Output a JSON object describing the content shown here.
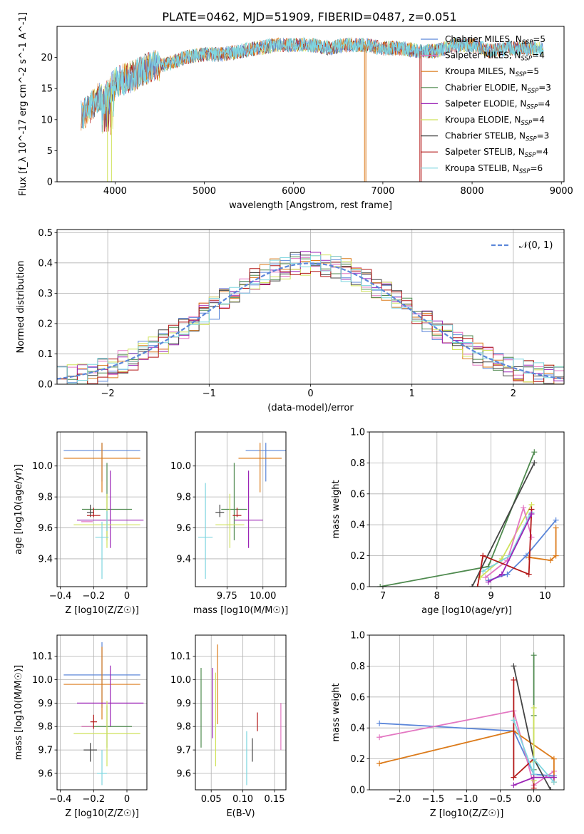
{
  "figure": {
    "title": "PLATE=0462, MJD=51909, FIBERID=0487, z=0.051"
  },
  "colors": {
    "chabrier_miles": "#5b86d9",
    "salpeter_miles": "#e377c2",
    "kroupa_miles": "#dc7b1b",
    "chabrier_elodie": "#4f8a4f",
    "salpeter_elodie": "#9b24b6",
    "kroupa_elodie": "#cfe25a",
    "chabrier_stelib": "#444444",
    "salpeter_stelib": "#b31717",
    "kroupa_stelib": "#7fd6e0"
  },
  "legend": [
    {
      "key": "chabrier_miles",
      "base": "Chabrier MILES, N",
      "n": "5"
    },
    {
      "key": "salpeter_miles",
      "base": "Salpeter MILES, N",
      "n": "4"
    },
    {
      "key": "kroupa_miles",
      "base": "Kroupa MILES, N",
      "n": "5"
    },
    {
      "key": "chabrier_elodie",
      "base": "Chabrier ELODIE, N",
      "n": "3"
    },
    {
      "key": "salpeter_elodie",
      "base": "Salpeter ELODIE, N",
      "n": "4"
    },
    {
      "key": "kroupa_elodie",
      "base": "Kroupa ELODIE, N",
      "n": "4"
    },
    {
      "key": "chabrier_stelib",
      "base": "Chabrier STELIB, N",
      "n": "3"
    },
    {
      "key": "salpeter_stelib",
      "base": "Salpeter STELIB, N",
      "n": "4"
    },
    {
      "key": "kroupa_stelib",
      "base": "Kroupa STELIB, N",
      "n": "6"
    }
  ],
  "legend_sub": "SSP",
  "normal_legend": "𝒩(0, 1)",
  "chart_data": [
    {
      "id": "spectrum",
      "type": "line",
      "xlabel": "wavelength [Angstrom, rest frame]",
      "ylabel": "Flux [f_λ 10^-17 erg cm^-2 s^-1 A^-1]",
      "xlim": [
        3350,
        9030
      ],
      "ylim": [
        0,
        25
      ],
      "xticks": [
        4000,
        5000,
        6000,
        7000,
        8000,
        9000
      ],
      "yticks": [
        0,
        5,
        10,
        15,
        20
      ],
      "grid": false,
      "spectrum_nodes": [
        [
          3620,
          10.5
        ],
        [
          3700,
          11.5
        ],
        [
          3800,
          13.5
        ],
        [
          3900,
          13.5
        ],
        [
          4000,
          16
        ],
        [
          4200,
          17
        ],
        [
          4400,
          18.5
        ],
        [
          4600,
          19
        ],
        [
          4800,
          20
        ],
        [
          5000,
          20.5
        ],
        [
          5200,
          20.5
        ],
        [
          5400,
          21
        ],
        [
          5600,
          21.5
        ],
        [
          5800,
          22
        ],
        [
          6000,
          22
        ],
        [
          6200,
          22
        ],
        [
          6400,
          21.5
        ],
        [
          6600,
          22
        ],
        [
          6800,
          22
        ],
        [
          7000,
          21.5
        ],
        [
          7200,
          21.5
        ],
        [
          7420,
          21
        ],
        [
          7600,
          21
        ],
        [
          7800,
          22
        ],
        [
          8000,
          22
        ],
        [
          8200,
          21
        ],
        [
          8400,
          21.5
        ],
        [
          8600,
          21.5
        ],
        [
          8800,
          21.5
        ]
      ],
      "drops": [
        [
          3915,
          3960
        ],
        [
          6795,
          6810
        ],
        [
          7415,
          7430
        ]
      ]
    },
    {
      "id": "residuals",
      "type": "bar",
      "xlabel": "(data-model)/error",
      "ylabel": "Normed distribution",
      "xlim": [
        -2.5,
        2.5
      ],
      "ylim": [
        0,
        0.51
      ],
      "xticks": [
        -2,
        -1,
        0,
        1,
        2
      ],
      "yticks": [
        0.0,
        0.1,
        0.2,
        0.3,
        0.4,
        0.5
      ],
      "grid": true,
      "bin_width": 0.1,
      "normal_mean": 0,
      "normal_sigma": 1
    },
    {
      "id": "age_vs_Z",
      "type": "scatter",
      "xlabel": "Z [log10(Z/Z☉)]",
      "ylabel": "age  [log10(age/yr)]",
      "xlim": [
        -0.42,
        0.12
      ],
      "ylim": [
        9.22,
        10.22
      ],
      "xticks": [
        -0.4,
        -0.2,
        0.0
      ],
      "yticks": [
        9.4,
        9.6,
        9.8,
        10.0
      ],
      "grid": true,
      "points": [
        {
          "key": "chabrier_miles",
          "x": -0.15,
          "y": 10.1,
          "xerr": 0.23,
          "yerr": [
            0.2,
            0.05
          ]
        },
        {
          "key": "kroupa_miles",
          "x": -0.15,
          "y": 10.05,
          "xerr": 0.23,
          "yerr": [
            0.22,
            0.1
          ]
        },
        {
          "key": "salpeter_miles",
          "x": -0.24,
          "y": 9.64,
          "xerr": 0.0,
          "yerr": [
            0.0,
            0.0
          ]
        },
        {
          "key": "chabrier_elodie",
          "x": -0.12,
          "y": 9.72,
          "xerr": 0.15,
          "yerr": [
            0.2,
            0.3
          ]
        },
        {
          "key": "salpeter_elodie",
          "x": -0.1,
          "y": 9.65,
          "xerr": 0.2,
          "yerr": [
            0.18,
            0.32
          ]
        },
        {
          "key": "kroupa_elodie",
          "x": -0.12,
          "y": 9.62,
          "xerr": 0.2,
          "yerr": [
            0.15,
            0.2
          ]
        },
        {
          "key": "chabrier_stelib",
          "x": -0.22,
          "y": 9.7,
          "xerr": 0.02,
          "yerr": [
            0.03,
            0.05
          ]
        },
        {
          "key": "salpeter_stelib",
          "x": -0.2,
          "y": 9.68,
          "xerr": 0.04,
          "yerr": [
            0.01,
            0.05
          ]
        },
        {
          "key": "kroupa_stelib",
          "x": -0.15,
          "y": 9.54,
          "xerr": 0.04,
          "yerr": [
            0.27,
            0.1
          ]
        },
        {
          "key": "kroupa_stelib",
          "x": -0.12,
          "y": 9.63,
          "xerr": 0.0,
          "yerr": [
            0.05,
            0.08
          ]
        }
      ]
    },
    {
      "id": "age_vs_mass",
      "type": "scatter",
      "xlabel": "mass [log10(M/M☉)]",
      "ylabel": "",
      "xlim": [
        9.53,
        10.16
      ],
      "ylim": [
        9.22,
        10.22
      ],
      "xticks": [
        9.75,
        10.0
      ],
      "xticklabels": [
        "9.75",
        "10.00"
      ],
      "yticks": [
        9.4,
        9.6,
        9.8,
        10.0
      ],
      "grid": true,
      "points": [
        {
          "key": "chabrier_miles",
          "x": 10.02,
          "y": 10.1,
          "xerr": 0.14,
          "yerr": [
            0.2,
            0.05
          ]
        },
        {
          "key": "kroupa_miles",
          "x": 9.98,
          "y": 10.05,
          "xerr": 0.15,
          "yerr": [
            0.22,
            0.1
          ]
        },
        {
          "key": "chabrier_elodie",
          "x": 9.8,
          "y": 9.72,
          "xerr": 0.09,
          "yerr": [
            0.2,
            0.3
          ]
        },
        {
          "key": "salpeter_elodie",
          "x": 9.9,
          "y": 9.65,
          "xerr": 0.1,
          "yerr": [
            0.18,
            0.32
          ]
        },
        {
          "key": "kroupa_elodie",
          "x": 9.77,
          "y": 9.62,
          "xerr": 0.1,
          "yerr": [
            0.15,
            0.2
          ]
        },
        {
          "key": "chabrier_stelib",
          "x": 9.7,
          "y": 9.7,
          "xerr": 0.03,
          "yerr": [
            0.03,
            0.05
          ]
        },
        {
          "key": "salpeter_stelib",
          "x": 9.82,
          "y": 9.68,
          "xerr": 0.03,
          "yerr": [
            0.01,
            0.05
          ]
        },
        {
          "key": "kroupa_stelib",
          "x": 9.6,
          "y": 9.54,
          "xerr": 0.05,
          "yerr": [
            0.27,
            0.35
          ]
        }
      ]
    },
    {
      "id": "mw_vs_age",
      "type": "line",
      "xlabel": "age  [log10(age/yr)]",
      "ylabel": "mass weight",
      "xlim": [
        6.75,
        10.35
      ],
      "ylim": [
        0,
        1.0
      ],
      "xticks": [
        7,
        8,
        9,
        10
      ],
      "yticks": [
        0.0,
        0.2,
        0.4,
        0.6,
        0.8,
        1.0
      ],
      "grid": true,
      "series": [
        {
          "key": "chabrier_elodie",
          "x": [
            6.95,
            8.95,
            9.8
          ],
          "y": [
            0.0,
            0.13,
            0.87
          ]
        },
        {
          "key": "chabrier_stelib",
          "x": [
            8.65,
            9.8
          ],
          "y": [
            0.0,
            0.8
          ]
        },
        {
          "key": "kroupa_elodie",
          "x": [
            8.8,
            9.2,
            9.75
          ],
          "y": [
            0.06,
            0.18,
            0.53
          ]
        },
        {
          "key": "salpeter_miles",
          "x": [
            8.9,
            9.3,
            9.6,
            9.75
          ],
          "y": [
            0.06,
            0.17,
            0.51,
            0.32
          ]
        },
        {
          "key": "kroupa_stelib",
          "x": [
            8.85,
            9.35,
            9.7,
            9.75
          ],
          "y": [
            0.1,
            0.2,
            0.45,
            0.48
          ]
        },
        {
          "key": "chabrier_miles",
          "x": [
            8.95,
            9.3,
            9.65,
            10.2
          ],
          "y": [
            0.04,
            0.08,
            0.2,
            0.43
          ]
        },
        {
          "key": "kroupa_miles",
          "x": [
            9.7,
            10.1,
            10.2,
            10.2
          ],
          "y": [
            0.19,
            0.17,
            0.2,
            0.38
          ]
        },
        {
          "key": "salpeter_stelib",
          "x": [
            8.75,
            8.85,
            9.7,
            9.75
          ],
          "y": [
            0.0,
            0.2,
            0.08,
            0.5
          ]
        },
        {
          "key": "salpeter_elodie",
          "x": [
            8.95,
            9.2,
            9.75
          ],
          "y": [
            0.03,
            0.08,
            0.47
          ]
        }
      ]
    },
    {
      "id": "mass_vs_Z",
      "type": "scatter",
      "xlabel": "Z [log10(Z/Z☉)]",
      "ylabel": "mass [log10(M/M☉)]",
      "xlim": [
        -0.42,
        0.12
      ],
      "ylim": [
        9.53,
        10.19
      ],
      "xticks": [
        -0.4,
        -0.2,
        0.0
      ],
      "yticks": [
        9.6,
        9.7,
        9.8,
        9.9,
        10.0,
        10.1
      ],
      "grid": true,
      "points": [
        {
          "key": "chabrier_miles",
          "x": -0.15,
          "y": 10.02,
          "xerr": 0.23,
          "yerr": [
            0.14,
            0.14
          ]
        },
        {
          "key": "kroupa_miles",
          "x": -0.15,
          "y": 9.98,
          "xerr": 0.23,
          "yerr": [
            0.15,
            0.16
          ]
        },
        {
          "key": "salpeter_elodie",
          "x": -0.1,
          "y": 9.9,
          "xerr": 0.2,
          "yerr": [
            0.1,
            0.16
          ]
        },
        {
          "key": "chabrier_elodie",
          "x": -0.12,
          "y": 9.8,
          "xerr": 0.15,
          "yerr": [
            0.09,
            0.09
          ]
        },
        {
          "key": "kroupa_elodie",
          "x": -0.12,
          "y": 9.77,
          "xerr": 0.2,
          "yerr": [
            0.14,
            0.14
          ]
        },
        {
          "key": "salpeter_stelib",
          "x": -0.2,
          "y": 9.82,
          "xerr": 0.02,
          "yerr": [
            0.03,
            0.03
          ]
        },
        {
          "key": "chabrier_stelib",
          "x": -0.22,
          "y": 9.7,
          "xerr": 0.04,
          "yerr": [
            0.05,
            0.03
          ]
        },
        {
          "key": "kroupa_stelib",
          "x": -0.15,
          "y": 9.6,
          "xerr": 0.03,
          "yerr": [
            0.05,
            0.1
          ]
        },
        {
          "key": "salpeter_miles",
          "x": -0.24,
          "y": 9.8,
          "xerr": 0.0,
          "yerr": [
            0.0,
            0.0
          ]
        }
      ]
    },
    {
      "id": "mass_vs_ebv",
      "type": "scatter",
      "xlabel": "E(B-V)",
      "ylabel": "",
      "xlim": [
        0.025,
        0.168
      ],
      "ylim": [
        9.53,
        10.19
      ],
      "xticks": [
        0.05,
        0.1,
        0.15
      ],
      "xticklabels": [
        "0.05",
        "0.10",
        "0.15"
      ],
      "yticks": [
        9.6,
        9.7,
        9.8,
        9.9,
        10.0,
        10.1
      ],
      "grid": true,
      "points": [
        {
          "key": "chabrier_elodie",
          "x": 0.034,
          "y": 9.88,
          "xerr": 0.0,
          "yerr": [
            0.17,
            0.17
          ]
        },
        {
          "key": "salpeter_elodie",
          "x": 0.052,
          "y": 9.9,
          "xerr": 0.0,
          "yerr": [
            0.15,
            0.15
          ]
        },
        {
          "key": "kroupa_elodie",
          "x": 0.057,
          "y": 9.83,
          "xerr": 0.0,
          "yerr": [
            0.2,
            0.2
          ]
        },
        {
          "key": "kroupa_miles",
          "x": 0.06,
          "y": 9.98,
          "xerr": 0.0,
          "yerr": [
            0.17,
            0.17
          ]
        },
        {
          "key": "kroupa_stelib",
          "x": 0.106,
          "y": 9.66,
          "xerr": 0.0,
          "yerr": [
            0.11,
            0.12
          ]
        },
        {
          "key": "chabrier_stelib",
          "x": 0.115,
          "y": 9.7,
          "xerr": 0.0,
          "yerr": [
            0.05,
            0.05
          ]
        },
        {
          "key": "salpeter_stelib",
          "x": 0.123,
          "y": 9.82,
          "xerr": 0.0,
          "yerr": [
            0.04,
            0.04
          ]
        },
        {
          "key": "salpeter_miles",
          "x": 0.16,
          "y": 9.8,
          "xerr": 0.0,
          "yerr": [
            0.1,
            0.1
          ]
        }
      ]
    },
    {
      "id": "mw_vs_Z",
      "type": "line",
      "xlabel": "Z [log10(Z/Z☉)]",
      "ylabel": "mass weight",
      "xlim": [
        -2.45,
        0.45
      ],
      "ylim": [
        0,
        1.0
      ],
      "xticks": [
        -2.0,
        -1.5,
        -1.0,
        -0.5,
        0.0
      ],
      "xticklabels": [
        "−2.0",
        "−1.5",
        "−1.0",
        "−0.5",
        "0.0"
      ],
      "yticks": [
        0.0,
        0.2,
        0.4,
        0.6,
        0.8,
        1.0
      ],
      "grid": true,
      "series": [
        {
          "key": "chabrier_miles",
          "x": [
            -2.3,
            -0.3,
            0.0,
            0.3
          ],
          "y": [
            0.43,
            0.38,
            0.1,
            0.09
          ]
        },
        {
          "key": "salpeter_miles",
          "x": [
            -2.3,
            -0.3,
            0.0,
            0.3
          ],
          "y": [
            0.34,
            0.51,
            0.03,
            0.12
          ]
        },
        {
          "key": "kroupa_miles",
          "x": [
            -2.3,
            -0.3,
            0.3,
            0.3
          ],
          "y": [
            0.17,
            0.38,
            0.2,
            0.05
          ]
        },
        {
          "key": "chabrier_elodie",
          "x": [
            0.0,
            0.0,
            0.0
          ],
          "y": [
            0.87,
            0.48,
            0.13
          ]
        },
        {
          "key": "chabrier_stelib",
          "x": [
            -0.3,
            0.0,
            0.25
          ],
          "y": [
            0.8,
            0.2,
            0.0
          ]
        },
        {
          "key": "salpeter_stelib",
          "x": [
            -0.3,
            -0.3,
            0.0,
            0.0
          ],
          "y": [
            0.71,
            0.08,
            0.2,
            0.01
          ]
        },
        {
          "key": "kroupa_elodie",
          "x": [
            0.0,
            0.0,
            0.0
          ],
          "y": [
            0.53,
            0.18,
            0.06
          ]
        },
        {
          "key": "kroupa_stelib",
          "x": [
            -0.3,
            0.0,
            0.0,
            0.3
          ],
          "y": [
            0.45,
            0.1,
            0.2,
            0.05
          ]
        },
        {
          "key": "salpeter_elodie",
          "x": [
            -0.3,
            0.0,
            0.3
          ],
          "y": [
            0.03,
            0.08,
            0.08
          ]
        }
      ]
    }
  ]
}
